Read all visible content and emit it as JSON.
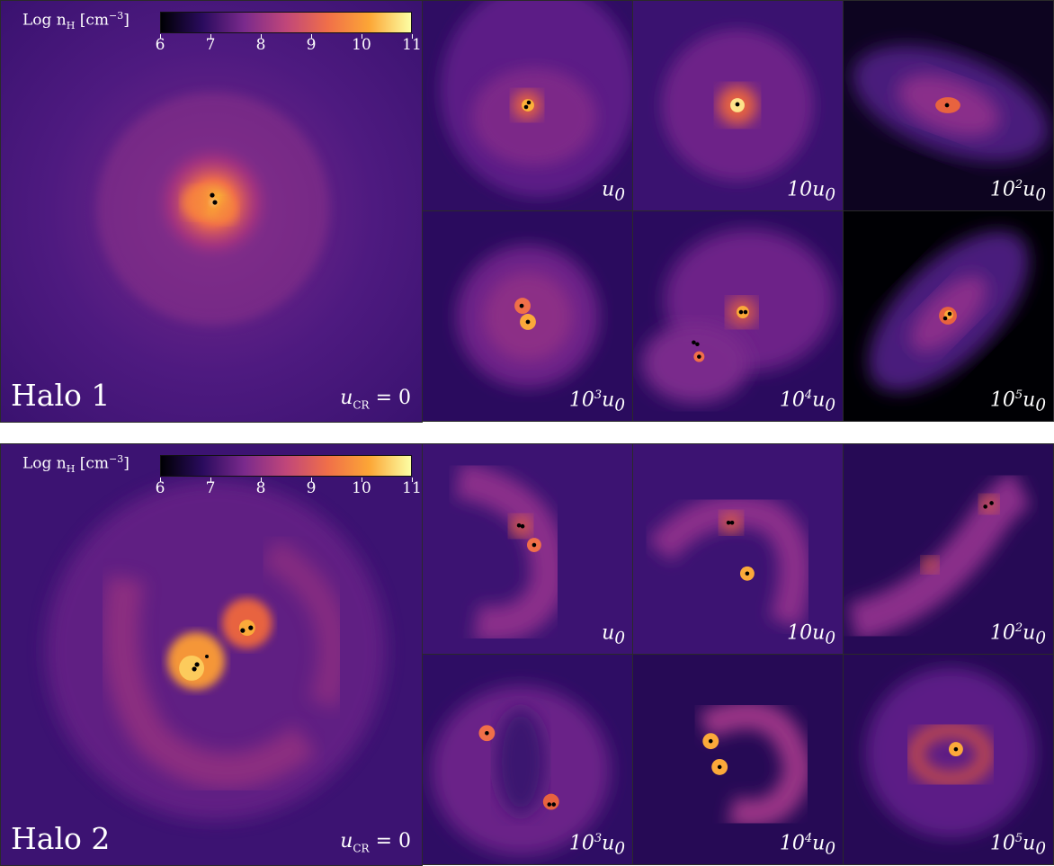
{
  "colorbar": {
    "title": "Log n",
    "title_sub": "H",
    "title_unit": "[cm",
    "title_exp": "−3",
    "title_close": "]",
    "ticks": [
      "6",
      "7",
      "8",
      "9",
      "10",
      "11"
    ],
    "colormap": [
      "#000004",
      "#2a0b5e",
      "#7a2a8c",
      "#c0467a",
      "#f06f49",
      "#fca636",
      "#fcffa4"
    ]
  },
  "halos": [
    {
      "title": "Halo 1",
      "main_label": {
        "var": "u",
        "sub": "CR",
        "rest": " = 0"
      },
      "panels": [
        {
          "coef": "",
          "exp": "",
          "sym": "u",
          "sub": "0"
        },
        {
          "coef": "10",
          "exp": "",
          "sym": "u",
          "sub": "0"
        },
        {
          "coef": "10",
          "exp": "2",
          "sym": "u",
          "sub": "0"
        },
        {
          "coef": "10",
          "exp": "3",
          "sym": "u",
          "sub": "0"
        },
        {
          "coef": "10",
          "exp": "4",
          "sym": "u",
          "sub": "0"
        },
        {
          "coef": "10",
          "exp": "5",
          "sym": "u",
          "sub": "0"
        }
      ]
    },
    {
      "title": "Halo 2",
      "main_label": {
        "var": "u",
        "sub": "CR",
        "rest": " = 0"
      },
      "panels": [
        {
          "coef": "",
          "exp": "",
          "sym": "u",
          "sub": "0"
        },
        {
          "coef": "10",
          "exp": "",
          "sym": "u",
          "sub": "0"
        },
        {
          "coef": "10",
          "exp": "2",
          "sym": "u",
          "sub": "0"
        },
        {
          "coef": "10",
          "exp": "3",
          "sym": "u",
          "sub": "0"
        },
        {
          "coef": "10",
          "exp": "4",
          "sym": "u",
          "sub": "0"
        },
        {
          "coef": "10",
          "exp": "5",
          "sym": "u",
          "sub": "0"
        }
      ]
    }
  ]
}
